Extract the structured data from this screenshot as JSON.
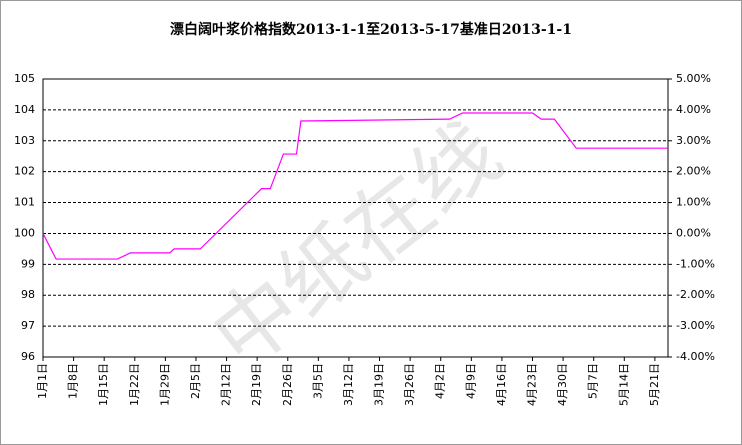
{
  "chart_data": {
    "type": "line",
    "title": "漂白阔叶浆价格指数2013-1-1至2013-5-17基准日2013-1-1",
    "watermark": "中纸在线",
    "x": [
      "1月1日",
      "1月4日",
      "1月18日",
      "1月21日",
      "1月30日",
      "1月31日",
      "2月6日",
      "2月20日",
      "2月22日",
      "2月25日",
      "2月28日",
      "3月1日",
      "4月4日",
      "4月7日",
      "4月23日",
      "4月25日",
      "4月28日",
      "5月3日",
      "5月24日"
    ],
    "series": [
      {
        "color": "#ff00ff",
        "values": [
          100.0,
          99.17,
          99.17,
          99.37,
          99.37,
          99.5,
          99.5,
          101.45,
          101.45,
          102.57,
          102.57,
          103.64,
          103.7,
          103.9,
          103.9,
          103.7,
          103.7,
          102.76,
          102.76
        ]
      }
    ],
    "xlim": [
      "1月1日",
      "5月24日"
    ],
    "xticks": [
      "1月1日",
      "1月8日",
      "1月15日",
      "1月22日",
      "1月29日",
      "2月5日",
      "2月12日",
      "2月19日",
      "2月26日",
      "3月5日",
      "3月12日",
      "3月19日",
      "3月26日",
      "4月2日",
      "4月9日",
      "4月16日",
      "4月23日",
      "4月30日",
      "5月7日",
      "5月14日",
      "5月21日"
    ],
    "ylim": [
      96,
      105
    ],
    "yticks": [
      96,
      97,
      98,
      99,
      100,
      101,
      102,
      103,
      104,
      105
    ],
    "y2lim": [
      -4,
      5
    ],
    "y2ticks": [
      {
        "value": -4,
        "label": "-4.00%"
      },
      {
        "value": -3,
        "label": "-3.00%"
      },
      {
        "value": -2,
        "label": "-2.00%"
      },
      {
        "value": -1,
        "label": "-1.00%"
      },
      {
        "value": 0,
        "label": "0.00%"
      },
      {
        "value": 1,
        "label": "1.00%"
      },
      {
        "value": 2,
        "label": "2.00%"
      },
      {
        "value": 3,
        "label": "3.00%"
      },
      {
        "value": 4,
        "label": "4.00%"
      },
      {
        "value": 5,
        "label": "5.00%"
      }
    ],
    "grid": true
  }
}
